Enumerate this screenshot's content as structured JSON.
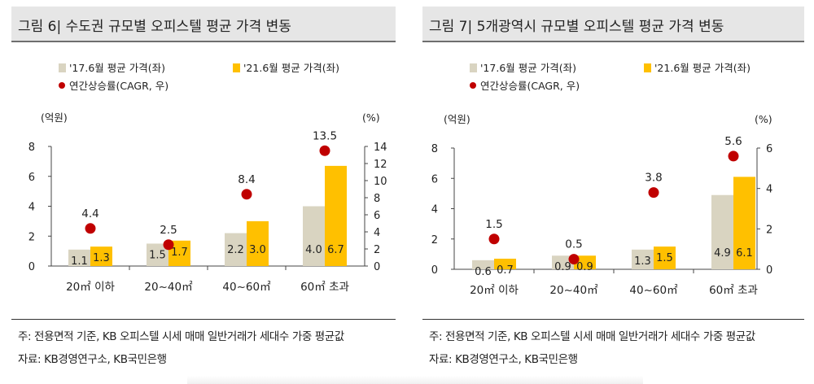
{
  "colors": {
    "bar_2017": "#d9d4c1",
    "bar_2021": "#ffc000",
    "cagr_dot": "#c00000",
    "axis": "#444444",
    "text": "#222222"
  },
  "panels": [
    {
      "title": "그림 6| 수도권 규모별 오피스텔 평균 가격 변동",
      "note": "주: 전용면적 기준, KB 오피스텔 시세 매매 일반거래가 세대수 가중 평균값",
      "source": "자료: KB경영연구소, KB국민은행"
    },
    {
      "title": "그림 7| 5개광역시 규모별 오피스텔 평균 가격 변동",
      "note": "주: 전용면적 기준, KB 오피스텔 시세 매매 일반거래가 세대수 가중 평균값",
      "source": "자료: KB경영연구소, KB국민은행"
    }
  ],
  "chart_data": [
    {
      "type": "bar",
      "legend_placement": "top-left",
      "grid": false,
      "categories": [
        "20㎡ 이하",
        "20~40㎡",
        "40~60㎡",
        "60㎡ 초과"
      ],
      "series": [
        {
          "name": "'17.6월 평균 가격(좌)",
          "type": "bar",
          "axis": "left",
          "values": [
            1.1,
            1.5,
            2.2,
            4.0
          ],
          "labels": [
            "1.1",
            "1.5",
            "2.2",
            "4.0"
          ]
        },
        {
          "name": "'21.6월 평균 가격(좌)",
          "type": "bar",
          "axis": "left",
          "values": [
            1.3,
            1.7,
            3.0,
            6.7
          ],
          "labels": [
            "1.3",
            "1.7",
            "3.0",
            "6.7"
          ]
        },
        {
          "name": "연간상승률(CAGR, 우)",
          "type": "scatter",
          "axis": "right",
          "values": [
            4.4,
            2.5,
            8.4,
            13.5
          ],
          "labels": [
            "4.4",
            "2.5",
            "8.4",
            "13.5"
          ]
        }
      ],
      "ylabel_left": "(억원)",
      "ylabel_right": "(%)",
      "ylim_left": [
        0,
        8
      ],
      "ylim_right": [
        0,
        14
      ],
      "yticks_left": [
        "0",
        "2",
        "4",
        "6",
        "8"
      ],
      "yticks_right": [
        "0",
        "2",
        "4",
        "6",
        "8",
        "10",
        "12",
        "14"
      ]
    },
    {
      "type": "bar",
      "legend_placement": "top-left",
      "grid": false,
      "categories": [
        "20㎡ 이하",
        "20~40㎡",
        "40~60㎡",
        "60㎡ 초과"
      ],
      "series": [
        {
          "name": "'17.6월 평균 가격(좌)",
          "type": "bar",
          "axis": "left",
          "values": [
            0.6,
            0.9,
            1.3,
            4.9
          ],
          "labels": [
            "0.6",
            "0.9",
            "1.3",
            "4.9"
          ]
        },
        {
          "name": "'21.6월 평균 가격(좌)",
          "type": "bar",
          "axis": "left",
          "values": [
            0.7,
            0.9,
            1.5,
            6.1
          ],
          "labels": [
            "0.7",
            "0.9",
            "1.5",
            "6.1"
          ]
        },
        {
          "name": "연간상승률(CAGR, 우)",
          "type": "scatter",
          "axis": "right",
          "values": [
            1.5,
            0.5,
            3.8,
            5.6
          ],
          "labels": [
            "1.5",
            "0.5",
            "3.8",
            "5.6"
          ]
        }
      ],
      "ylabel_left": "(억원)",
      "ylabel_right": "(%)",
      "ylim_left": [
        0,
        8
      ],
      "ylim_right": [
        0,
        6
      ],
      "yticks_left": [
        "0",
        "2",
        "4",
        "6",
        "8"
      ],
      "yticks_right": [
        "0",
        "2",
        "4",
        "6"
      ]
    }
  ]
}
